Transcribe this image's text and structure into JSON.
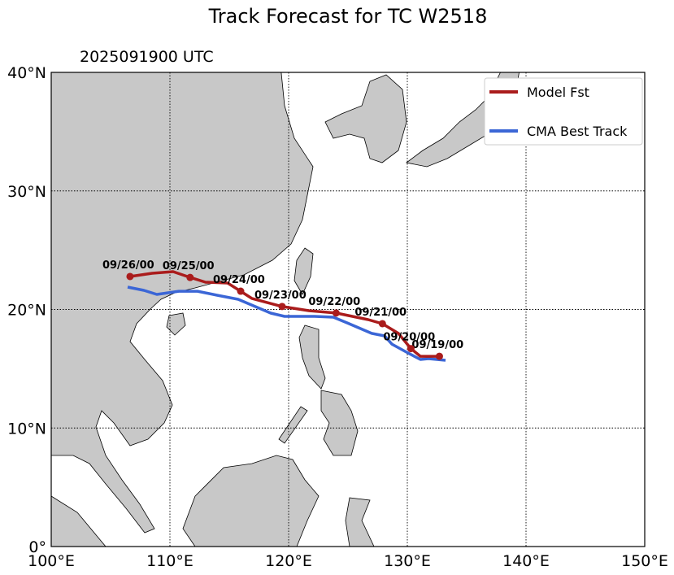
{
  "title": "Track Forecast for TC W2518",
  "subtitle": "2025091900 UTC",
  "map": {
    "lon_range": [
      100,
      150
    ],
    "lat_range": [
      0,
      40
    ],
    "x_ticks": [
      "100°E",
      "110°E",
      "120°E",
      "130°E",
      "140°E",
      "150°E"
    ],
    "y_ticks": [
      "0°",
      "10°N",
      "20°N",
      "30°N",
      "40°N"
    ],
    "grid": "dotted",
    "land_color": "#c8c8c8",
    "ocean_color": "#ffffff"
  },
  "legend": {
    "placement": "top-right",
    "items": [
      {
        "label": "Model Fst",
        "color": "#aa1c1c"
      },
      {
        "label": "CMA Best Track",
        "color": "#3b66d6"
      }
    ]
  },
  "model_track": {
    "color": "#aa1c1c",
    "points": [
      {
        "lon": 132.7,
        "lat": 16.05,
        "label": "09/19/00"
      },
      {
        "lon": 131.1,
        "lat": 16.05
      },
      {
        "lon": 130.3,
        "lat": 16.7,
        "label": "09/20/00"
      },
      {
        "lon": 129.25,
        "lat": 17.98
      },
      {
        "lon": 127.9,
        "lat": 18.8,
        "label": "09/21/00"
      },
      {
        "lon": 126.7,
        "lat": 19.14
      },
      {
        "lon": 124.0,
        "lat": 19.7,
        "label": "09/22/00"
      },
      {
        "lon": 121.7,
        "lat": 19.9
      },
      {
        "lon": 119.45,
        "lat": 20.25,
        "label": "09/23/00"
      },
      {
        "lon": 116.9,
        "lat": 20.93
      },
      {
        "lon": 115.96,
        "lat": 21.54,
        "label": "09/24/00"
      },
      {
        "lon": 114.86,
        "lat": 22.23
      },
      {
        "lon": 113.0,
        "lat": 22.3
      },
      {
        "lon": 111.7,
        "lat": 22.7,
        "label": "09/25/00"
      },
      {
        "lon": 110.27,
        "lat": 23.19
      },
      {
        "lon": 108.5,
        "lat": 23.05
      },
      {
        "lon": 106.64,
        "lat": 22.78,
        "label": "09/26/00"
      }
    ]
  },
  "best_track": {
    "color": "#3b66d6",
    "points": [
      {
        "lon": 133.22,
        "lat": 15.71
      },
      {
        "lon": 131.78,
        "lat": 15.85
      },
      {
        "lon": 131.1,
        "lat": 15.78
      },
      {
        "lon": 129.93,
        "lat": 16.4
      },
      {
        "lon": 128.7,
        "lat": 17.08
      },
      {
        "lon": 128.08,
        "lat": 17.77
      },
      {
        "lon": 126.99,
        "lat": 17.98
      },
      {
        "lon": 124.93,
        "lat": 18.87
      },
      {
        "lon": 123.77,
        "lat": 19.35
      },
      {
        "lon": 122.19,
        "lat": 19.42
      },
      {
        "lon": 119.66,
        "lat": 19.42
      },
      {
        "lon": 118.49,
        "lat": 19.69
      },
      {
        "lon": 115.75,
        "lat": 20.86
      },
      {
        "lon": 113.97,
        "lat": 21.2
      },
      {
        "lon": 112.33,
        "lat": 21.54
      },
      {
        "lon": 110.75,
        "lat": 21.54
      },
      {
        "lon": 108.9,
        "lat": 21.27
      },
      {
        "lon": 107.81,
        "lat": 21.61
      },
      {
        "lon": 106.44,
        "lat": 21.89
      }
    ]
  }
}
